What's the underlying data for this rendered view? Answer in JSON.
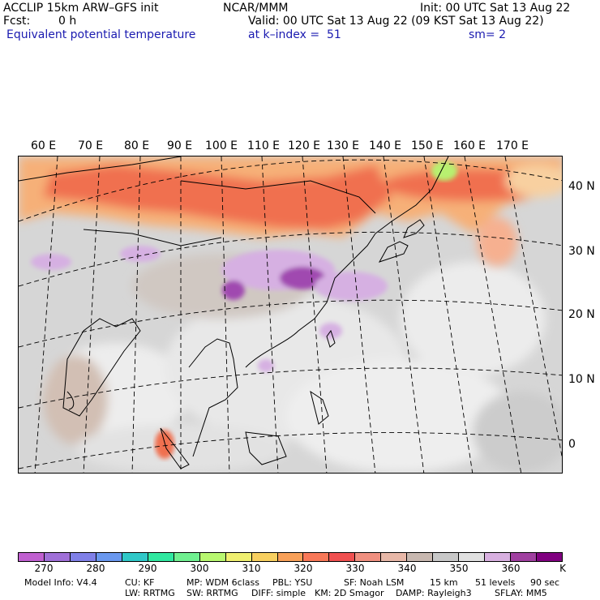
{
  "header": {
    "model": "ACCLIP 15km ARW–GFS init",
    "org": "NCAR/MMM",
    "init": "Init: 00 UTC Sat 13 Aug 22",
    "fcst_label": "Fcst:",
    "fcst_value": "0 h",
    "valid": "Valid: 00 UTC Sat 13 Aug 22 (09 KST Sat 13 Aug 22)",
    "field": "Equivalent potential temperature",
    "level": "at k–index =  51",
    "smooth": "sm= 2"
  },
  "map": {
    "lon_labels": [
      "60 E",
      "70 E",
      "80 E",
      "90 E",
      "100 E",
      "110 E",
      "120 E",
      "130 E",
      "140 E",
      "150 E",
      "160 E",
      "170 E"
    ],
    "lat_labels": [
      "40 N",
      "30 N",
      "20 N",
      "10 N",
      "0"
    ]
  },
  "colorbar": {
    "colors": [
      "#c060d0",
      "#a070d8",
      "#8080e8",
      "#6a98ef",
      "#30c8c8",
      "#30e8a0",
      "#70f090",
      "#b8f870",
      "#f0f070",
      "#f8d060",
      "#f8a058",
      "#f87858",
      "#f05050",
      "#f09080",
      "#e8b8a8",
      "#c8b8b0",
      "#c8c8c8",
      "#e0e0e0",
      "#d8b0e0",
      "#a040a0",
      "#800080"
    ],
    "tick_labels": [
      "270",
      "280",
      "290",
      "300",
      "310",
      "320",
      "330",
      "340",
      "350",
      "360",
      "K"
    ]
  },
  "footer": {
    "row1": [
      "Model Info: V4.4",
      "CU: KF",
      "MP: WDM 6class",
      "PBL: YSU",
      "SF: Noah LSM",
      "15 km",
      "51 levels",
      "90 sec"
    ],
    "row2": [
      "LW: RRTMG",
      "SW: RRTMG",
      "DIFF: simple",
      "KM: 2D Smagor",
      "DAMP: Rayleigh3",
      "SFLAY: MM5"
    ]
  }
}
